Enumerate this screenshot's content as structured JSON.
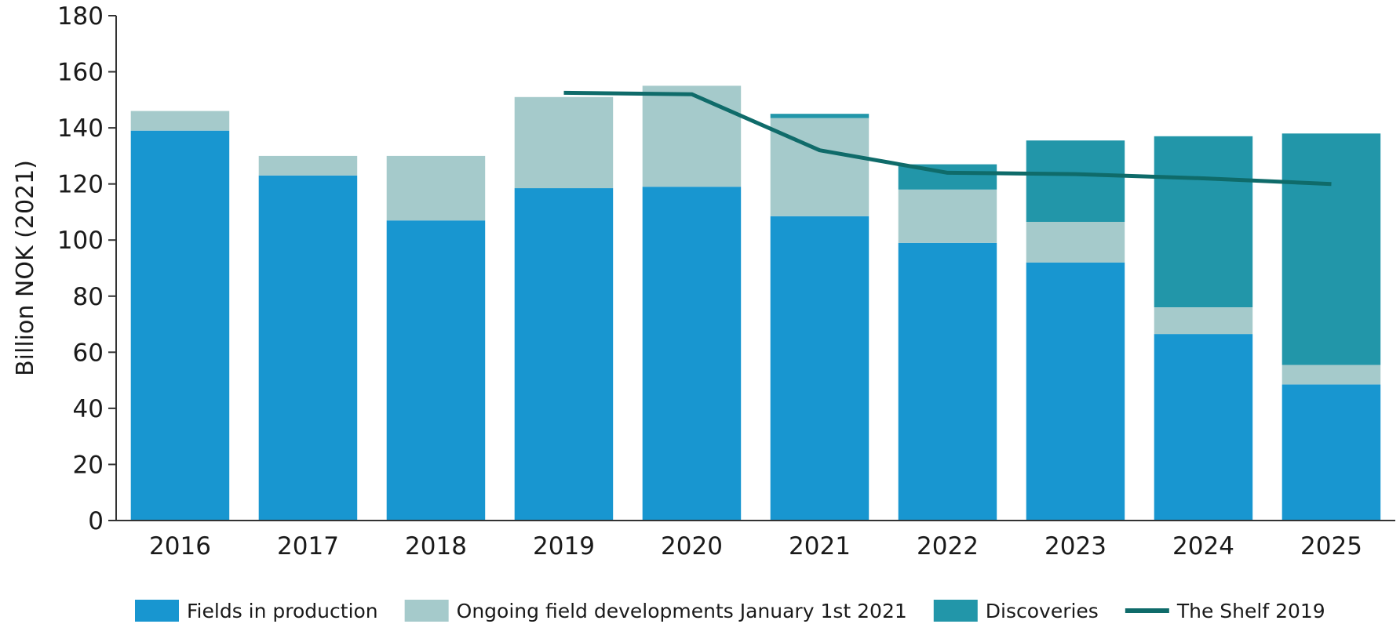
{
  "chart_data": {
    "type": "bar",
    "stacked": true,
    "categories": [
      "2016",
      "2017",
      "2018",
      "2019",
      "2020",
      "2021",
      "2022",
      "2023",
      "2024",
      "2025"
    ],
    "series": [
      {
        "name": "Fields in production",
        "kind": "bar",
        "color": "#1896d0",
        "values": [
          139,
          123,
          107,
          118.5,
          119,
          108.5,
          99,
          92,
          66.5,
          48.5
        ]
      },
      {
        "name": "Ongoing field developments January 1st 2021",
        "kind": "bar",
        "color": "#a5cacb",
        "values": [
          7,
          7,
          23,
          32.5,
          36,
          35,
          19,
          14.5,
          9.5,
          7
        ]
      },
      {
        "name": "Discoveries",
        "kind": "bar",
        "color": "#2296a9",
        "values": [
          0,
          0,
          0,
          0,
          0,
          1.5,
          9,
          29,
          61,
          82.5
        ]
      },
      {
        "name": "The Shelf 2019",
        "kind": "line",
        "color": "#0f6b6a",
        "values": [
          null,
          null,
          null,
          152.5,
          152,
          132,
          124,
          123.5,
          122,
          120
        ]
      }
    ],
    "ylabel": "Billion NOK (2021)",
    "xlabel": "",
    "ylim": [
      0,
      180
    ],
    "yticks": [
      "0",
      "20",
      "40",
      "60",
      "80",
      "100",
      "120",
      "140",
      "160",
      "180"
    ],
    "grid": false,
    "legend": "bottom"
  }
}
